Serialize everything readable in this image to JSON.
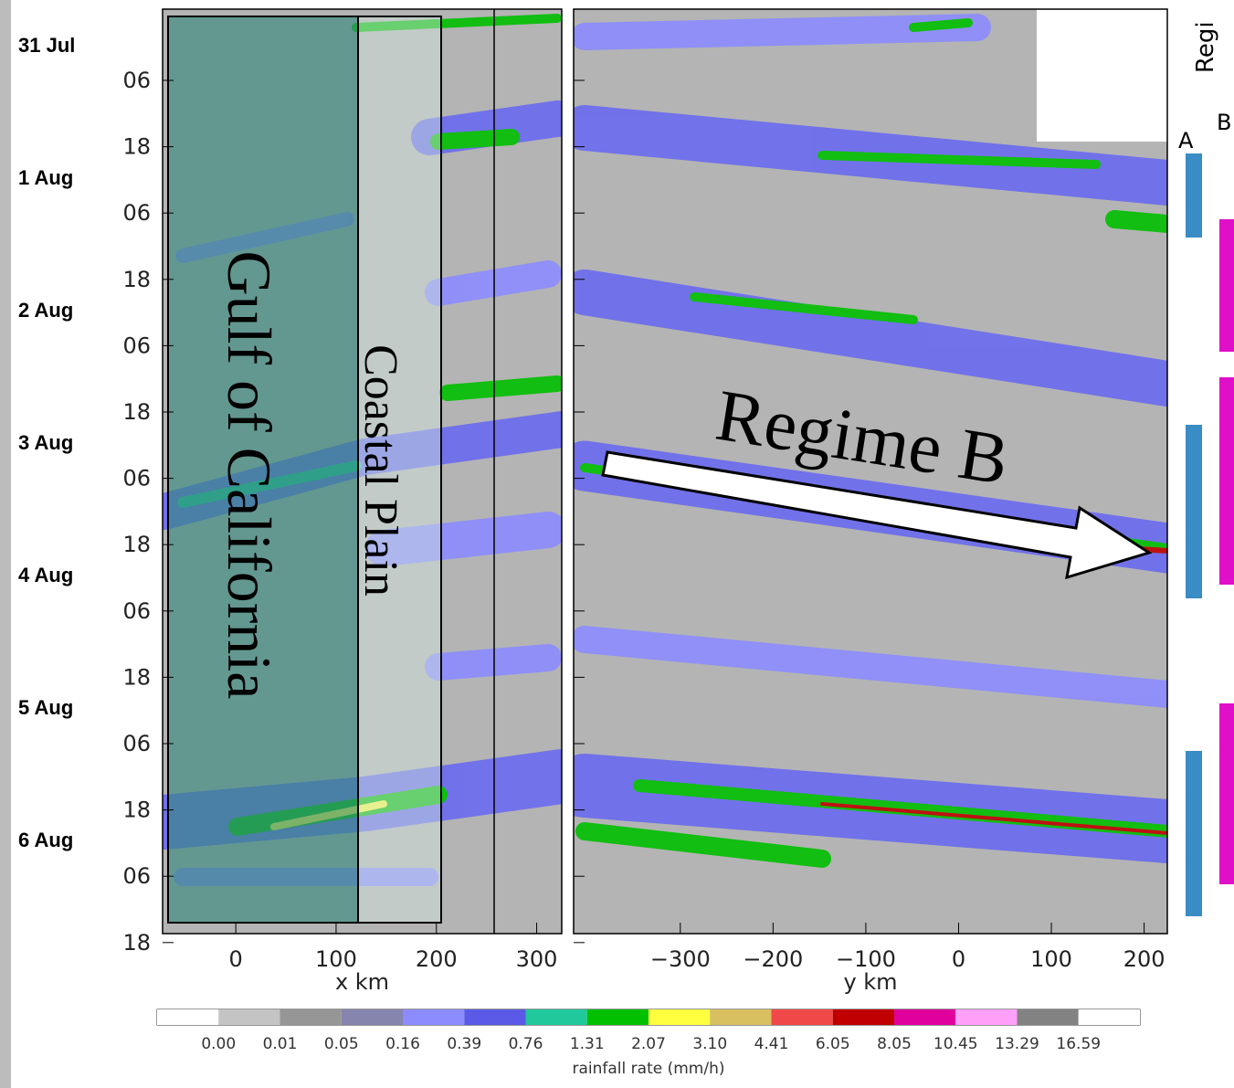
{
  "figure": {
    "date_labels": [
      "31 Jul",
      "1 Aug",
      "2 Aug",
      "3 Aug",
      "4 Aug",
      "5 Aug",
      "6 Aug"
    ],
    "time_labels": [
      "06",
      "18",
      "06",
      "18",
      "06",
      "18",
      "06",
      "18",
      "06",
      "18",
      "06",
      "18",
      "06",
      "18"
    ],
    "left_panel": {
      "xlabel": "x km",
      "xlim": [
        -73,
        325
      ],
      "xticks": [
        0,
        100,
        200,
        300
      ]
    },
    "right_panel": {
      "xlabel": "y km",
      "xlim": [
        -415,
        225
      ],
      "xticks": [
        {
          "value": -300,
          "label": "−300"
        },
        {
          "value": -200,
          "label": "−200"
        },
        {
          "value": -100,
          "label": "−100"
        },
        0,
        100,
        200
      ]
    },
    "colorbar": {
      "label": "rainfall rate (mm/h)",
      "colors": [
        "#ffffff",
        "#c4c4c4",
        "#969696",
        "#8585ad",
        "#8c8cff",
        "#5a5ae6",
        "#20c89c",
        "#00c000",
        "#ffff40",
        "#d8c060",
        "#f04848",
        "#c00000",
        "#e0009c",
        "#ffa0f8",
        "#828282",
        "#ffffff"
      ],
      "ticks": [
        {
          "value": 0,
          "label": "0.00"
        },
        0.01,
        0.05,
        0.16,
        0.39,
        0.76,
        1.31,
        2.07,
        {
          "value": 3.1,
          "label": "3.10"
        },
        4.41,
        6.05,
        8.05,
        10.45,
        13.29,
        16.59
      ]
    },
    "annotations": {
      "gulf": "Gulf of California",
      "coastal": "Coastal Plain",
      "regime_b": "Regime B",
      "regime_header": "Regi",
      "regime_a_label": "A",
      "regime_b_label": "B"
    }
  }
}
